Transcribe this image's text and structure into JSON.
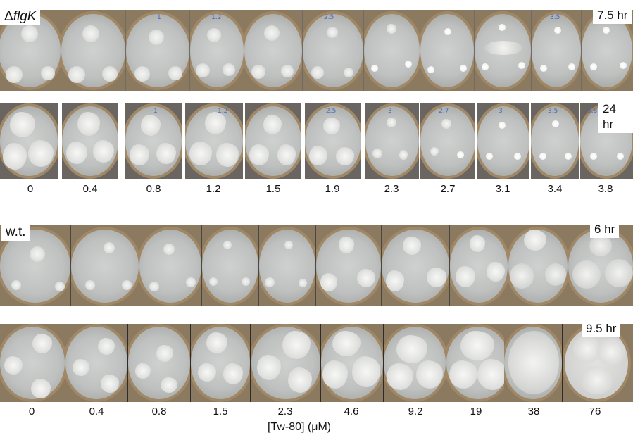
{
  "panel_top": {
    "strain_label_prefix": "Δ",
    "strain_label_gene": "flgK",
    "time_row1": "7.5 hr",
    "time_row2": "24 hr",
    "concentrations": [
      "0",
      "0.4",
      "0.8",
      "1.2",
      "1.5",
      "1.9",
      "2.3",
      "2.7",
      "3.1",
      "3.4",
      "3.8"
    ]
  },
  "panel_bottom": {
    "strain_label": "w.t.",
    "time_row1": "6 hr",
    "time_row2": "9.5 hr",
    "concentrations": [
      "0",
      "0.4",
      "0.8",
      "1.5",
      "2.3",
      "4.6",
      "9.2",
      "19",
      "38",
      "76"
    ]
  },
  "axis_title": "[Tw-80] (μM)",
  "colors": {
    "agar": "#c4c6c5",
    "colony": "#eeeeec",
    "dish_rim": "#a08866",
    "background": "#6f6b66",
    "pen_mark": "#4a6bbd"
  }
}
